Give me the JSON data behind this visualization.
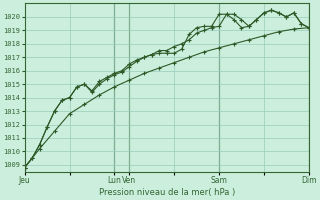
{
  "background_color": "#cceedd",
  "grid_color": "#99ccbb",
  "line_color": "#2d5a27",
  "xlabel": "Pression niveau de la mer( hPa )",
  "ylim": [
    1008.5,
    1021.0
  ],
  "yticks": [
    1009,
    1010,
    1011,
    1012,
    1013,
    1014,
    1015,
    1016,
    1017,
    1018,
    1019,
    1020
  ],
  "xtick_labels": [
    "Jeu",
    "",
    "Lun",
    "Ven",
    "",
    "Sam",
    "",
    "Dim"
  ],
  "xtick_positions": [
    0,
    36,
    72,
    84,
    120,
    156,
    192,
    228
  ],
  "xlim": [
    0,
    228
  ],
  "vline_positions": [
    72,
    84,
    156,
    228
  ],
  "vline_color": "#336633",
  "smooth_x": [
    0,
    12,
    24,
    36,
    48,
    60,
    72,
    84,
    96,
    108,
    120,
    132,
    144,
    156,
    168,
    180,
    192,
    204,
    216,
    228
  ],
  "smooth_y": [
    1008.8,
    1010.2,
    1011.5,
    1012.8,
    1013.5,
    1014.2,
    1014.8,
    1015.3,
    1015.8,
    1016.2,
    1016.6,
    1017.0,
    1017.4,
    1017.7,
    1018.0,
    1018.3,
    1018.6,
    1018.9,
    1019.1,
    1019.2
  ],
  "series2_x": [
    0,
    6,
    12,
    18,
    24,
    30,
    36,
    42,
    48,
    54,
    60,
    66,
    72,
    78,
    84,
    90,
    96,
    102,
    108,
    114,
    120,
    126,
    132,
    138,
    144,
    150,
    156,
    162,
    168,
    174,
    180,
    186,
    192,
    198,
    204,
    210,
    216,
    222,
    228
  ],
  "series2_y": [
    1008.8,
    1009.5,
    1010.5,
    1011.8,
    1013.0,
    1013.8,
    1014.0,
    1014.8,
    1015.0,
    1014.4,
    1015.0,
    1015.4,
    1015.7,
    1015.9,
    1016.3,
    1016.7,
    1017.0,
    1017.2,
    1017.3,
    1017.3,
    1017.3,
    1017.6,
    1018.7,
    1019.2,
    1019.3,
    1019.3,
    1020.2,
    1020.2,
    1019.8,
    1019.2,
    1019.3,
    1019.8,
    1020.3,
    1020.5,
    1020.3,
    1020.0,
    1020.3,
    1019.5,
    1019.2
  ],
  "series3_x": [
    0,
    6,
    12,
    18,
    24,
    30,
    36,
    42,
    48,
    54,
    60,
    66,
    72,
    78,
    84,
    90,
    96,
    102,
    108,
    114,
    120,
    126,
    132,
    138,
    144,
    150,
    156,
    162,
    168,
    174,
    180,
    186,
    192,
    198,
    204,
    210,
    216,
    222,
    228
  ],
  "series3_y": [
    1008.8,
    1009.5,
    1010.5,
    1011.8,
    1013.0,
    1013.8,
    1014.0,
    1014.8,
    1015.0,
    1014.5,
    1015.2,
    1015.5,
    1015.8,
    1016.0,
    1016.5,
    1016.8,
    1017.0,
    1017.2,
    1017.5,
    1017.5,
    1017.8,
    1018.0,
    1018.3,
    1018.8,
    1019.0,
    1019.2,
    1019.3,
    1020.2,
    1020.2,
    1019.8,
    1019.3,
    1019.8,
    1020.3,
    1020.5,
    1020.3,
    1020.0,
    1020.3,
    1019.5,
    1019.2
  ]
}
